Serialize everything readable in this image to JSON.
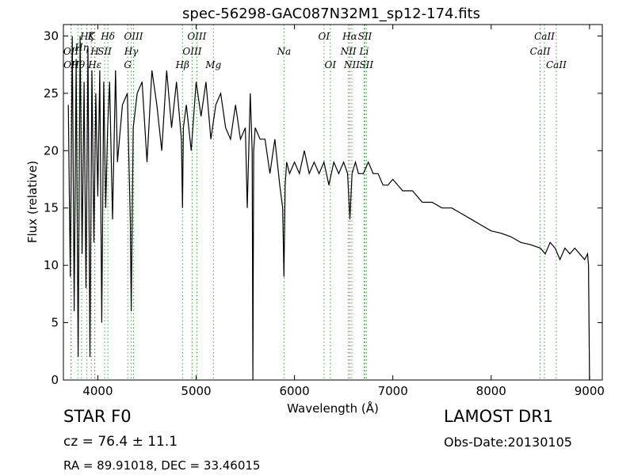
{
  "chart_data": {
    "type": "line",
    "title": "spec-56298-GAC087N32M1_sp12-174.fits",
    "xlabel": "Wavelength (Å)",
    "ylabel": "Flux (relative)",
    "xlim": [
      3650,
      9130
    ],
    "ylim": [
      0,
      31
    ],
    "xticks": [
      4000,
      5000,
      6000,
      7000,
      8000,
      9000
    ],
    "yticks": [
      0,
      5,
      10,
      15,
      20,
      25,
      30
    ],
    "grid": false,
    "line_color": "#000000",
    "marker_color": "#33aa33",
    "series": [
      {
        "x": [
          3700,
          3720,
          3740,
          3760,
          3780,
          3800,
          3820,
          3840,
          3860,
          3880,
          3900,
          3920,
          3940,
          3960,
          3980,
          4000,
          4020,
          4040,
          4060,
          4080,
          4100,
          4120,
          4150,
          4180,
          4200,
          4250,
          4300,
          4330,
          4340,
          4360,
          4400,
          4450,
          4500,
          4550,
          4600,
          4650,
          4700,
          4750,
          4800,
          4850,
          4861,
          4870,
          4900,
          4950,
          5000,
          5050,
          5100,
          5150,
          5200,
          5250,
          5300,
          5350,
          5400,
          5450,
          5500,
          5520,
          5550,
          5570,
          5577,
          5585,
          5600,
          5650,
          5700,
          5750,
          5800,
          5850,
          5880,
          5893,
          5905,
          5920,
          5950,
          6000,
          6050,
          6100,
          6150,
          6200,
          6250,
          6300,
          6350,
          6400,
          6450,
          6500,
          6540,
          6563,
          6585,
          6620,
          6650,
          6700,
          6750,
          6800,
          6850,
          6900,
          6950,
          7000,
          7100,
          7200,
          7300,
          7400,
          7500,
          7600,
          7700,
          7800,
          7900,
          8000,
          8100,
          8200,
          8300,
          8400,
          8500,
          8550,
          8600,
          8650,
          8700,
          8750,
          8800,
          8850,
          8900,
          8950,
          8980,
          8990,
          9000,
          9010
        ],
        "y": [
          24,
          9,
          30,
          6,
          28,
          2,
          30,
          11,
          26,
          8,
          29,
          2,
          27,
          12,
          25,
          16,
          27,
          5,
          26,
          15,
          22,
          26,
          14,
          27,
          19,
          24,
          25,
          14,
          6,
          22,
          25,
          26,
          19,
          27,
          24,
          20,
          27,
          22,
          26,
          21,
          15,
          22,
          24,
          20,
          26,
          23,
          26,
          21,
          24,
          25,
          22,
          21,
          24,
          21,
          22,
          15,
          25,
          20,
          0,
          20,
          22,
          21,
          21,
          18,
          21,
          17,
          15,
          9,
          17,
          19,
          18,
          19,
          18,
          20,
          18,
          19,
          18,
          19,
          17,
          19,
          18,
          19,
          18,
          14,
          18,
          19,
          18,
          18,
          19,
          18,
          18,
          17,
          17,
          17.5,
          16.5,
          16.5,
          15.5,
          15.5,
          15,
          15,
          14.5,
          14,
          13.5,
          13,
          12.8,
          12.5,
          12,
          11.8,
          11.5,
          11,
          12,
          11.5,
          10.5,
          11.5,
          11,
          11.5,
          11,
          10.5,
          11,
          10,
          0,
          0
        ]
      }
    ],
    "line_labels": [
      {
        "text": "OII",
        "x": 3727,
        "row": 1
      },
      {
        "text": "OII",
        "x": 3729,
        "row": 2
      },
      {
        "text": "Hθ",
        "x": 3797,
        "row": 2
      },
      {
        "text": "Hη",
        "x": 3835,
        "row": 3
      },
      {
        "text": "Hζ",
        "x": 3889,
        "row": 0
      },
      {
        "text": "K",
        "x": 3934,
        "row": 0
      },
      {
        "text": "H",
        "x": 3968,
        "row": 1
      },
      {
        "text": "Hε",
        "x": 3970,
        "row": 2
      },
      {
        "text": "SII",
        "x": 4069,
        "row": 1
      },
      {
        "text": "Hδ",
        "x": 4102,
        "row": 0
      },
      {
        "text": "G",
        "x": 4304,
        "row": 2
      },
      {
        "text": "Hγ",
        "x": 4340,
        "row": 1
      },
      {
        "text": "OIII",
        "x": 4363,
        "row": 0
      },
      {
        "text": "Hβ",
        "x": 4861,
        "row": 2
      },
      {
        "text": "OIII",
        "x": 4959,
        "row": 1
      },
      {
        "text": "OIII",
        "x": 5007,
        "row": 0
      },
      {
        "text": "Mg",
        "x": 5175,
        "row": 2
      },
      {
        "text": "Na",
        "x": 5893,
        "row": 1
      },
      {
        "text": "OI",
        "x": 6300,
        "row": 0
      },
      {
        "text": "OI",
        "x": 6364,
        "row": 2
      },
      {
        "text": "NII",
        "x": 6548,
        "row": 1
      },
      {
        "text": "Hα",
        "x": 6563,
        "row": 0
      },
      {
        "text": "NII",
        "x": 6583,
        "row": 2
      },
      {
        "text": "SII",
        "x": 6716,
        "row": 0
      },
      {
        "text": "Li",
        "x": 6708,
        "row": 1
      },
      {
        "text": "SII",
        "x": 6731,
        "row": 2
      },
      {
        "text": "CaII",
        "x": 8498,
        "row": 1
      },
      {
        "text": "CaII",
        "x": 8542,
        "row": 0
      },
      {
        "text": "CaII",
        "x": 8662,
        "row": 2
      }
    ]
  },
  "info": {
    "class": "STAR   F0",
    "survey": "LAMOST DR1",
    "cz": "cz = 76.4  ± 11.1",
    "obs_date": "Obs-Date:20130105",
    "coords": "RA = 89.91018, DEC = 33.46015"
  }
}
